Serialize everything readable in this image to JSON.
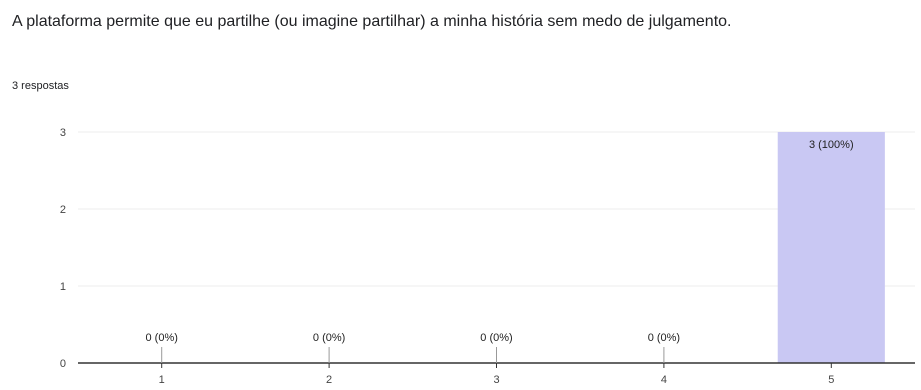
{
  "question": {
    "title": "A plataforma permite que eu partilhe (ou imagine partilhar) a minha história sem medo de julgamento.",
    "response_count": "3 respostas"
  },
  "colors": {
    "bar": "#c9c8f3",
    "grid": "#eeeeee",
    "axis": "#333333"
  },
  "chart_data": {
    "type": "bar",
    "categories": [
      "1",
      "2",
      "3",
      "4",
      "5"
    ],
    "values": [
      0,
      0,
      0,
      0,
      3
    ],
    "data_labels": [
      "0 (0%)",
      "0 (0%)",
      "0 (0%)",
      "0 (0%)",
      "3 (100%)"
    ],
    "ylim": [
      0,
      3
    ],
    "y_ticks": [
      0,
      1,
      2,
      3
    ],
    "grid": true,
    "title": "",
    "xlabel": "",
    "ylabel": ""
  }
}
